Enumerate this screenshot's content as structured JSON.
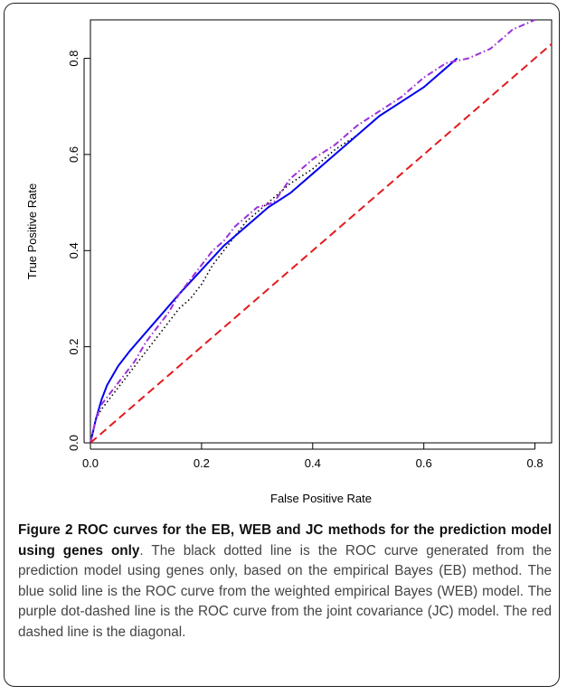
{
  "chart_data": {
    "type": "line",
    "xlabel": "False Positive Rate",
    "ylabel": "True Positive Rate",
    "xlim": [
      0.0,
      0.83
    ],
    "ylim": [
      0.0,
      0.88
    ],
    "xticks": [
      "0.0",
      "0.2",
      "0.4",
      "0.6",
      "0.8"
    ],
    "yticks": [
      "0.0",
      "0.2",
      "0.4",
      "0.6",
      "0.8"
    ],
    "grid": false,
    "series": [
      {
        "style": "dotted",
        "color": "#000000",
        "x": [
          0.0,
          0.01,
          0.02,
          0.04,
          0.06,
          0.08,
          0.1,
          0.12,
          0.14,
          0.16,
          0.18,
          0.2,
          0.22,
          0.24,
          0.26,
          0.28,
          0.3,
          0.33,
          0.36,
          0.4,
          0.44,
          0.48,
          0.52,
          0.56,
          0.6,
          0.64,
          0.66
        ],
        "y": [
          0.0,
          0.05,
          0.07,
          0.1,
          0.13,
          0.16,
          0.19,
          0.22,
          0.25,
          0.28,
          0.3,
          0.33,
          0.37,
          0.4,
          0.43,
          0.46,
          0.48,
          0.51,
          0.54,
          0.57,
          0.61,
          0.64,
          0.68,
          0.71,
          0.74,
          0.78,
          0.8
        ]
      },
      {
        "style": "solid",
        "color": "#0000ee",
        "x": [
          0.0,
          0.01,
          0.02,
          0.03,
          0.05,
          0.07,
          0.1,
          0.13,
          0.16,
          0.2,
          0.24,
          0.28,
          0.32,
          0.36,
          0.4,
          0.44,
          0.48,
          0.52,
          0.56,
          0.6,
          0.64,
          0.66
        ],
        "y": [
          0.0,
          0.05,
          0.09,
          0.12,
          0.16,
          0.19,
          0.23,
          0.27,
          0.31,
          0.36,
          0.41,
          0.45,
          0.49,
          0.52,
          0.56,
          0.6,
          0.64,
          0.68,
          0.71,
          0.74,
          0.78,
          0.8
        ]
      },
      {
        "style": "dotdash",
        "color": "#9b30d9",
        "x": [
          0.0,
          0.01,
          0.02,
          0.04,
          0.06,
          0.08,
          0.1,
          0.12,
          0.14,
          0.16,
          0.18,
          0.2,
          0.22,
          0.24,
          0.26,
          0.28,
          0.3,
          0.33,
          0.36,
          0.4,
          0.44,
          0.48,
          0.52,
          0.56,
          0.6,
          0.64,
          0.68,
          0.72,
          0.76,
          0.8
        ],
        "y": [
          0.0,
          0.05,
          0.08,
          0.11,
          0.14,
          0.17,
          0.21,
          0.24,
          0.27,
          0.31,
          0.34,
          0.37,
          0.4,
          0.42,
          0.45,
          0.47,
          0.49,
          0.5,
          0.55,
          0.59,
          0.62,
          0.66,
          0.69,
          0.72,
          0.76,
          0.79,
          0.8,
          0.82,
          0.86,
          0.88
        ]
      },
      {
        "style": "dashed",
        "color": "#e31a1c",
        "x": [
          0.0,
          0.83
        ],
        "y": [
          0.0,
          0.83
        ]
      }
    ]
  },
  "caption": {
    "figure_label": "Figure 2",
    "title": "ROC curves for the EB, WEB and JC methods for the prediction model using genes only",
    "body": ". The black dotted line is the ROC curve generated from the prediction model using genes only, based on the empirical Bayes (EB) method. The blue solid line is the ROC curve from the weighted empirical Bayes (WEB) model. The purple dot-dashed line is the ROC curve from the joint covariance (JC) model. The red dashed line is the diagonal."
  }
}
